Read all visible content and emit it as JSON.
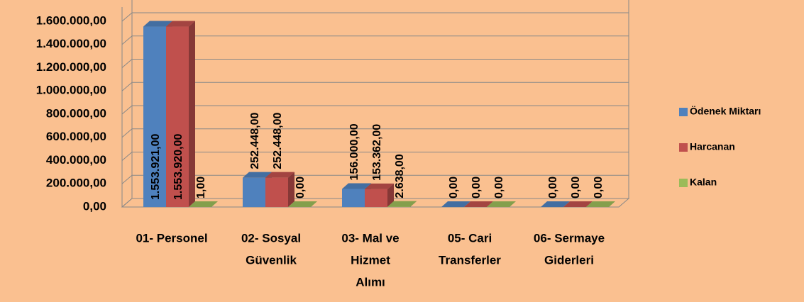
{
  "chart_data": {
    "type": "bar3d",
    "categories": [
      [
        "01- Personel"
      ],
      [
        "02- Sosyal",
        "Güvenlik"
      ],
      [
        "03- Mal ve",
        "Hizmet",
        "Alımı"
      ],
      [
        "05- Cari",
        "Transferler"
      ],
      [
        "06- Sermaye",
        "Giderleri"
      ]
    ],
    "series": [
      {
        "name": "Ödenek Miktarı",
        "color": "#4f81bd",
        "values": [
          1553921,
          252448,
          156000,
          0,
          0
        ],
        "value_labels": [
          "1.553.921,00",
          "252.448,00",
          "156.000,00",
          "0,00",
          "0,00"
        ]
      },
      {
        "name": "Harcanan",
        "color": "#c0504d",
        "values": [
          1553920,
          252448,
          153362,
          0,
          0
        ],
        "value_labels": [
          "1.553.920,00",
          "252.448,00",
          "153.362,00",
          "0,00",
          "0,00"
        ]
      },
      {
        "name": "Kalan",
        "color": "#9bbb59",
        "values": [
          1,
          0,
          2638,
          0,
          0
        ],
        "value_labels": [
          "1,00",
          "0,00",
          "2.638,00",
          "0,00",
          "0,00"
        ]
      }
    ],
    "ylim": [
      0,
      1600000
    ],
    "yticks": [
      {
        "value": 0,
        "label": "0,00"
      },
      {
        "value": 200000,
        "label": "200.000,00"
      },
      {
        "value": 400000,
        "label": "400.000,00"
      },
      {
        "value": 600000,
        "label": "600.000,00"
      },
      {
        "value": 800000,
        "label": "800.000,00"
      },
      {
        "value": 1000000,
        "label": "1.000.000,00"
      },
      {
        "value": 1200000,
        "label": "1.200.000,00"
      },
      {
        "value": 1400000,
        "label": "1.400.000,00"
      },
      {
        "value": 1600000,
        "label": "1.600.000,00"
      }
    ],
    "grid": true,
    "legend": "right"
  }
}
